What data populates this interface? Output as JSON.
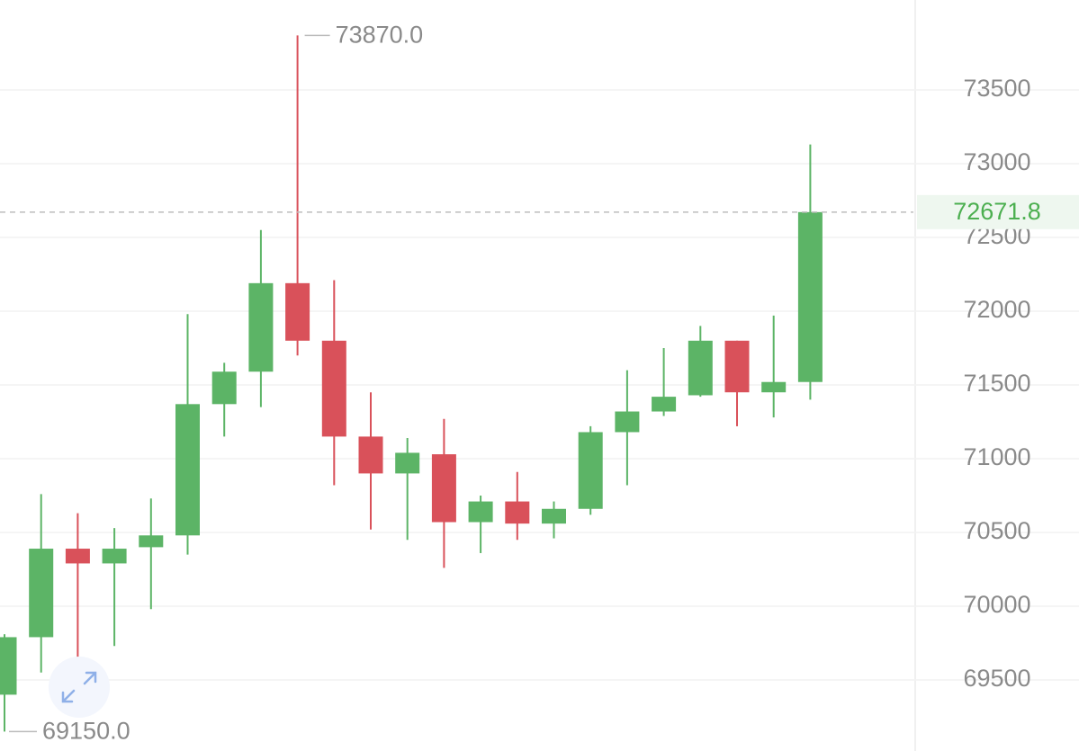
{
  "chart_data": {
    "type": "candlestick",
    "open": [
      69400,
      69790,
      70390,
      70290,
      70400,
      70480,
      71370,
      71590,
      72190,
      71800,
      71150,
      70900,
      71030,
      70570,
      70710,
      70560,
      70660,
      71180,
      71320,
      71430,
      71800,
      71450,
      71520
    ],
    "high": [
      69810,
      70760,
      70630,
      70530,
      70730,
      71980,
      71650,
      72550,
      73870,
      72210,
      71450,
      71140,
      71270,
      70750,
      70910,
      70710,
      71220,
      71600,
      71750,
      71900,
      71800,
      71970,
      73130
    ],
    "low": [
      69150,
      69550,
      69310,
      69730,
      69980,
      70350,
      71150,
      71350,
      71700,
      70820,
      70520,
      70450,
      70260,
      70360,
      70450,
      70460,
      70620,
      70820,
      71290,
      71420,
      71220,
      71280,
      71400
    ],
    "close": [
      69790,
      70390,
      70290,
      70390,
      70480,
      71370,
      71590,
      72190,
      71800,
      71150,
      70900,
      71040,
      70570,
      70710,
      70560,
      70660,
      71180,
      71320,
      71420,
      71800,
      71450,
      71520,
      72671.8
    ],
    "up_color": "#5cb466",
    "down_color": "#d9515a",
    "ylim": [
      69050,
      74100
    ],
    "yticks": [
      69500,
      70000,
      70500,
      71000,
      71500,
      72000,
      72500,
      73000,
      73500
    ],
    "grid": true,
    "high_marker": {
      "value": 73870,
      "label": "73870.0"
    },
    "low_marker": {
      "value": 69150,
      "label": "69150.0"
    },
    "last_price": 72671.8
  }
}
